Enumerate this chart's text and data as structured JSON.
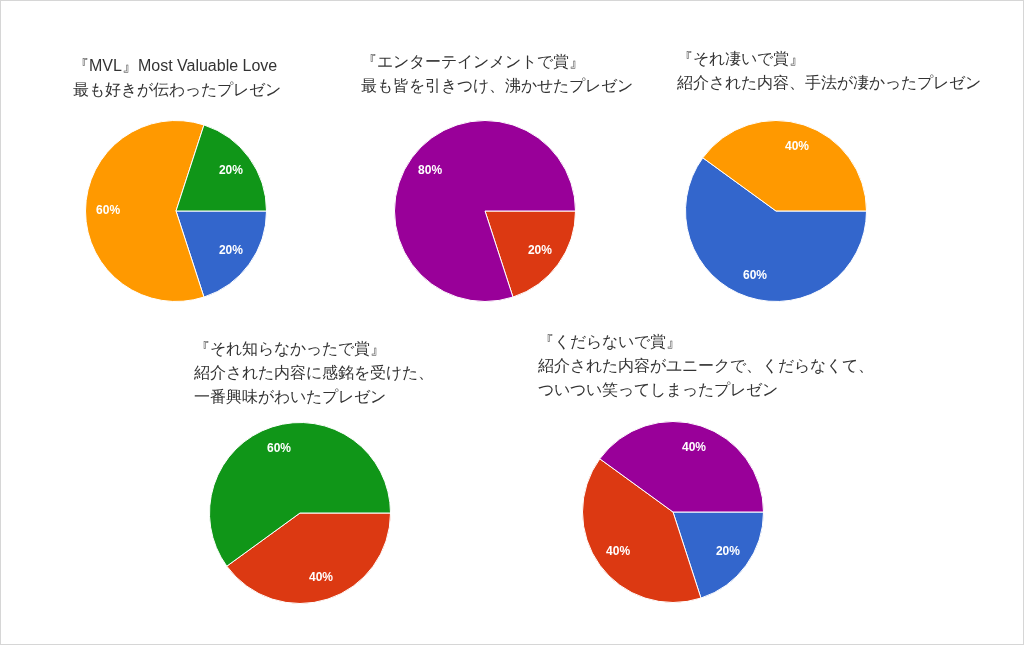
{
  "chart_data": [
    {
      "type": "pie",
      "title": "『MVL』Most Valuable Love",
      "subtitle": "最も好きが伝わったプレゼン",
      "categories": [
        null,
        null,
        null
      ],
      "values": [
        20,
        60,
        20
      ],
      "colors": [
        "#3366cc",
        "#ff9900",
        "#109618"
      ],
      "value_labels": [
        "20%",
        "60%",
        "20%"
      ]
    },
    {
      "type": "pie",
      "title": "『エンターテインメントで賞』",
      "subtitle": "最も皆を引きつけ、沸かせたプレゼン",
      "categories": [
        null,
        null
      ],
      "values": [
        20,
        80
      ],
      "colors": [
        "#dc3912",
        "#990099"
      ],
      "value_labels": [
        "20%",
        "80%"
      ]
    },
    {
      "type": "pie",
      "title": "『それ凄いで賞』",
      "subtitle": "紹介された内容、手法が凄かったプレゼン",
      "categories": [
        null,
        null
      ],
      "values": [
        60,
        40
      ],
      "colors": [
        "#3366cc",
        "#ff9900"
      ],
      "value_labels": [
        "60%",
        "40%"
      ]
    },
    {
      "type": "pie",
      "title": "『それ知らなかったで賞』",
      "subtitle": "紹介された内容に感銘を受けた、一番興味がわいたプレゼン",
      "categories": [
        null,
        null
      ],
      "values": [
        40,
        60
      ],
      "colors": [
        "#dc3912",
        "#109618"
      ],
      "value_labels": [
        "40%",
        "60%"
      ]
    },
    {
      "type": "pie",
      "title": "『くだらないで賞』",
      "subtitle": "紹介された内容がユニークで、くだらなくて、ついつい笑ってしまったプレゼン",
      "categories": [
        null,
        null,
        null
      ],
      "values": [
        20,
        40,
        40
      ],
      "colors": [
        "#3366cc",
        "#dc3912",
        "#990099"
      ],
      "value_labels": [
        "20%",
        "40%",
        "40%"
      ]
    }
  ]
}
